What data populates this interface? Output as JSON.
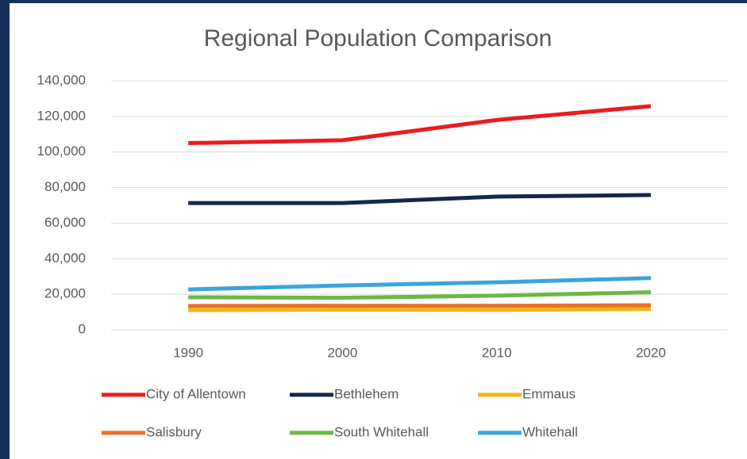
{
  "chart_data": {
    "type": "line",
    "title": "Regional Population Comparison",
    "categories": [
      "1990",
      "2000",
      "2010",
      "2020"
    ],
    "series": [
      {
        "name": "City of Allentown",
        "color": "#ec1c1c",
        "values": [
          105000,
          106600,
          118000,
          125800
        ]
      },
      {
        "name": "Bethlehem",
        "color": "#15284b",
        "values": [
          71300,
          71300,
          74900,
          75800
        ]
      },
      {
        "name": "Emmaus",
        "color": "#f4b41a",
        "values": [
          11100,
          11300,
          11200,
          11700
        ]
      },
      {
        "name": "Salisbury",
        "color": "#e8702a",
        "values": [
          13400,
          13500,
          13500,
          13800
        ]
      },
      {
        "name": "South Whitehall",
        "color": "#6cb845",
        "values": [
          18300,
          18000,
          19200,
          21100
        ]
      },
      {
        "name": "Whitehall",
        "color": "#3aa5dc",
        "values": [
          22700,
          24900,
          26700,
          29100
        ]
      }
    ],
    "ylim": [
      0,
      140000
    ],
    "yticks": [
      0,
      {
        "value": 20000,
        "label": "20,000"
      },
      {
        "value": 40000,
        "label": "40,000"
      },
      {
        "value": 60000,
        "label": "60,000"
      },
      {
        "value": 80000,
        "label": "80,000"
      },
      {
        "value": 100000,
        "label": "100,000"
      },
      {
        "value": 120000,
        "label": "120,000"
      },
      {
        "value": 140000,
        "label": "140,000"
      }
    ],
    "grid": true,
    "legend": "bottom"
  }
}
